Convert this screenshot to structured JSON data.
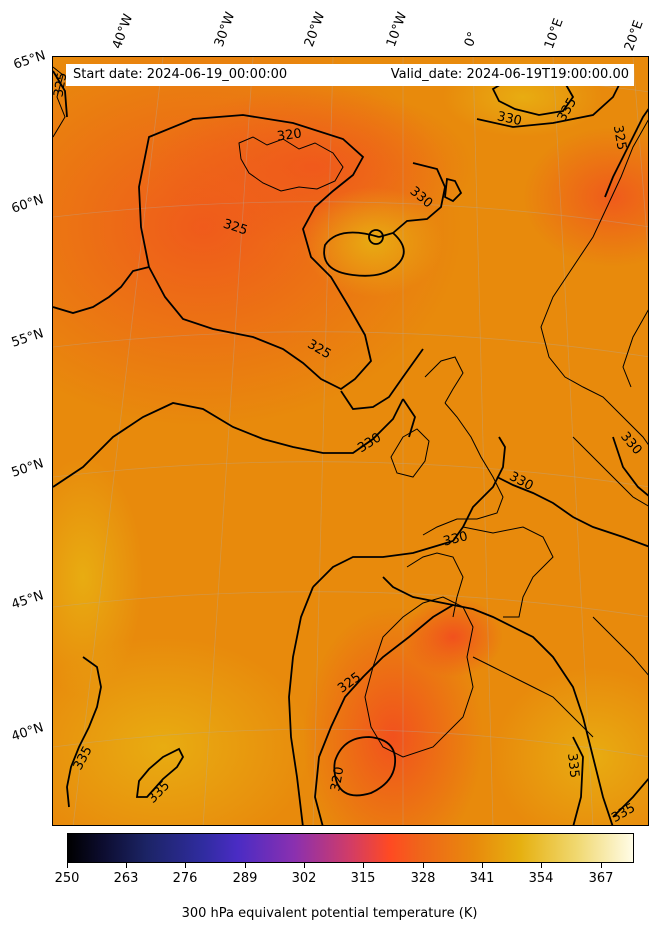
{
  "header": {
    "start_date": "Start date: 2024-06-19_00:00:00",
    "valid_date": "Valid_date: 2024-06-19T19:00:00.00"
  },
  "longitude_labels": [
    "40°W",
    "30°W",
    "20°W",
    "10°W",
    "0°",
    "10°E",
    "20°E"
  ],
  "latitude_labels": [
    "65°N",
    "60°N",
    "55°N",
    "50°N",
    "45°N",
    "40°N"
  ],
  "contour_labels": [
    "325",
    "320",
    "330",
    "335",
    "325",
    "330",
    "325",
    "325",
    "330",
    "330",
    "330",
    "330",
    "325",
    "320",
    "335",
    "335",
    "335",
    "335"
  ],
  "colorbar": {
    "title": "300 hPa equivalent potential temperature (K)",
    "ticks": [
      "250",
      "263",
      "276",
      "289",
      "302",
      "315",
      "328",
      "341",
      "354",
      "367"
    ],
    "colors": [
      "#000000",
      "#302ca0",
      "#d23c66",
      "#ff4a22",
      "#e88a0c",
      "#e6b010",
      "#fffce6"
    ]
  },
  "map_colors": {
    "warm_orange": "#e88a0c",
    "red_orange": "#f0641a",
    "gold": "#e6a810"
  }
}
